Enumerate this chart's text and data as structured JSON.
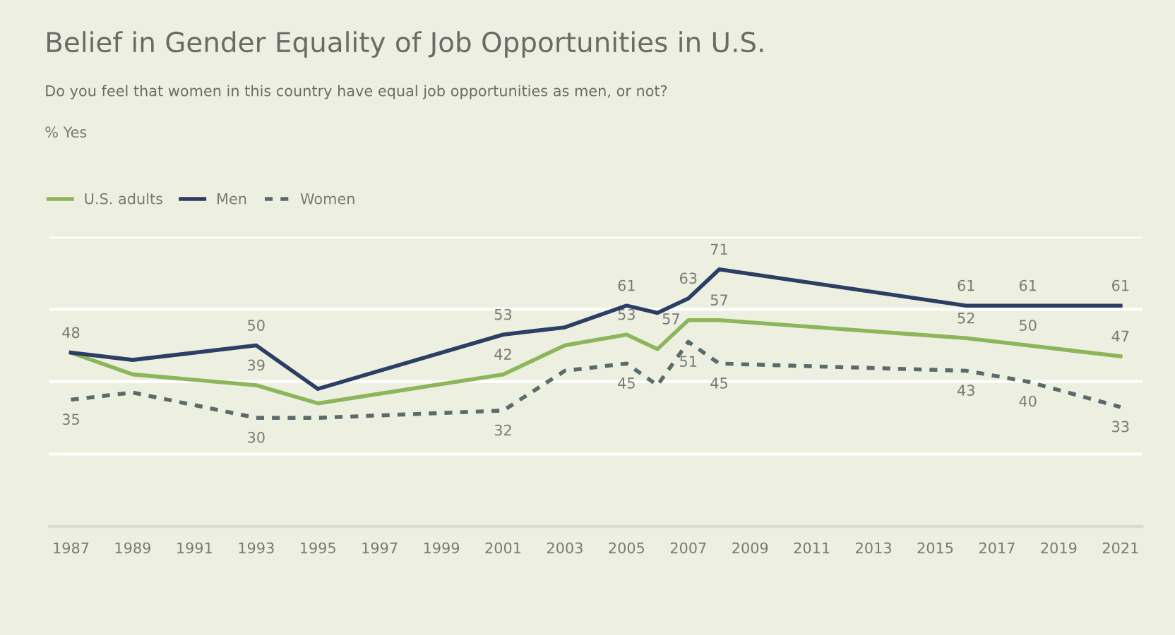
{
  "chart_data": {
    "type": "line",
    "title": "Belief in Gender Equality of Job Opportunities in U.S.",
    "subtitle": "Do you feel that women in this country have equal job opportunities as men, or not?",
    "annotations": [
      "% Yes"
    ],
    "x": [
      1987,
      1989,
      1993,
      1995,
      2001,
      2003,
      2005,
      2006,
      2007,
      2008,
      2016,
      2018,
      2021
    ],
    "series": [
      {
        "name": "U.S. adults",
        "color": "#8db55a",
        "line_style": "solid",
        "values": [
          48,
          42,
          39,
          34,
          42,
          50,
          53,
          49,
          57,
          57,
          52,
          50,
          47
        ],
        "value_labels": [
          null,
          null,
          "39",
          null,
          "42",
          null,
          "53",
          null,
          "57",
          "57",
          "52",
          "50",
          "47"
        ]
      },
      {
        "name": "Men",
        "color": "#2c3e63",
        "line_style": "solid",
        "values": [
          48,
          46,
          50,
          38,
          53,
          55,
          61,
          59,
          63,
          71,
          61,
          61,
          61
        ],
        "value_labels": [
          "48",
          null,
          "50",
          null,
          "53",
          null,
          "61",
          null,
          "63",
          "71",
          "61",
          "61",
          "61"
        ]
      },
      {
        "name": "Women",
        "color": "#5b6b6b",
        "line_style": "dashed",
        "values": [
          35,
          37,
          30,
          30,
          32,
          43,
          45,
          39,
          51,
          45,
          43,
          40,
          33
        ],
        "value_labels": [
          "35",
          null,
          "30",
          null,
          "32",
          null,
          "45",
          null,
          "51",
          "45",
          "43",
          "40",
          "33"
        ]
      }
    ],
    "xlim": [
      1986.3,
      2021.7
    ],
    "xticks": [
      1987,
      1989,
      1991,
      1993,
      1995,
      1997,
      1999,
      2001,
      2003,
      2005,
      2007,
      2009,
      2011,
      2013,
      2015,
      2017,
      2019,
      2021
    ],
    "ylim": [
      0,
      80
    ],
    "yticks": [
      {
        "value": 0,
        "label": null
      },
      {
        "value": 20,
        "label": null
      },
      {
        "value": 40,
        "label": null
      },
      {
        "value": 60,
        "label": null
      },
      {
        "value": 80,
        "label": null
      }
    ],
    "tick_labels": "x",
    "grid": "y",
    "legend": "top left",
    "marker": "none"
  }
}
